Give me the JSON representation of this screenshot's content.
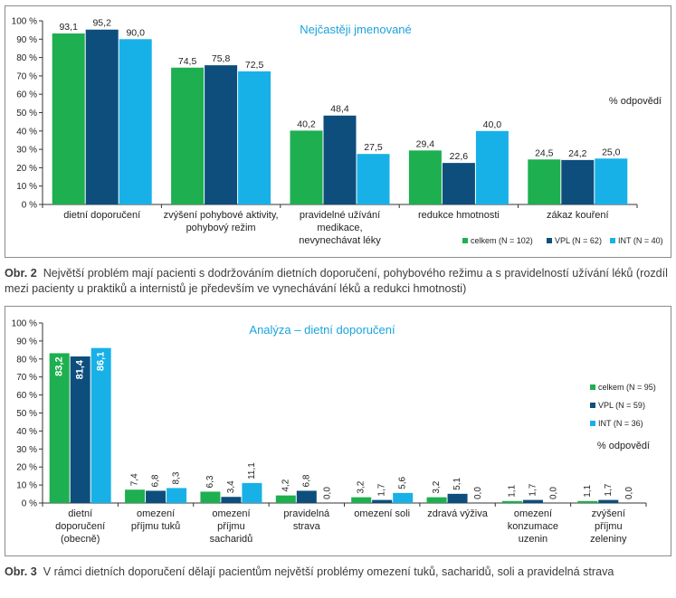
{
  "colors": {
    "celkem": "#1eaf50",
    "VPL": "#0d4e7c",
    "INT": "#17b1e8",
    "title": "#1aa3dd",
    "axis": "#333333"
  },
  "chart_data": [
    {
      "type": "bar",
      "title": "Nejčastěji jmenované",
      "unit_label": "% odpovědí",
      "categories": [
        [
          "dietní doporučení"
        ],
        [
          "zvýšení pohybové aktivity,",
          "pohybový režim"
        ],
        [
          "pravidelné užívání",
          "medikace,",
          "nevynechávat léky"
        ],
        [
          "redukce hmotnosti"
        ],
        [
          "zákaz kouření"
        ]
      ],
      "series": [
        {
          "name": "celkem (N = 102)",
          "values": [
            93.1,
            74.5,
            40.2,
            29.4,
            24.5
          ],
          "labels": [
            "93,1",
            "74,5",
            "40,2",
            "29,4",
            "24,5"
          ]
        },
        {
          "name": "VPL (N = 62)",
          "values": [
            95.2,
            75.8,
            48.4,
            22.6,
            24.2
          ],
          "labels": [
            "95,2",
            "75,8",
            "48,4",
            "22,6",
            "24,2"
          ]
        },
        {
          "name": "INT (N = 40)",
          "values": [
            90.0,
            72.5,
            27.5,
            40.0,
            25.0
          ],
          "labels": [
            "90,0",
            "72,5",
            "27,5",
            "40,0",
            "25,0"
          ]
        }
      ],
      "yticks": [
        "0 %",
        "10 %",
        "20 %",
        "30 %",
        "40 %",
        "50 %",
        "60 %",
        "70 %",
        "80 %",
        "90 %",
        "100 %"
      ],
      "ylim": [
        0,
        100
      ],
      "legend_placement": "bottom-right",
      "value_labels": "horizontal above bars"
    },
    {
      "type": "bar",
      "title": "Analýza – dietní doporučení",
      "unit_label": "% odpovědí",
      "categories": [
        [
          "dietní",
          "doporučení",
          "(obecně)"
        ],
        [
          "omezení",
          "příjmu tuků"
        ],
        [
          "omezení",
          "příjmu",
          "sacharidů"
        ],
        [
          "pravidelná",
          "strava"
        ],
        [
          "omezení soli"
        ],
        [
          "zdravá výživa"
        ],
        [
          "omezení",
          "konzumace",
          "uzenin"
        ],
        [
          "zvýšení",
          "příjmu",
          "zeleniny"
        ]
      ],
      "series": [
        {
          "name": "celkem (N = 95)",
          "values": [
            83.2,
            7.4,
            6.3,
            4.2,
            3.2,
            3.2,
            1.1,
            1.1
          ],
          "labels": [
            "83,2",
            "7,4",
            "6,3",
            "4,2",
            "3,2",
            "3,2",
            "1,1",
            "1,1"
          ]
        },
        {
          "name": "VPL (N = 59)",
          "values": [
            81.4,
            6.8,
            3.4,
            6.8,
            1.7,
            5.1,
            1.7,
            1.7
          ],
          "labels": [
            "81,4",
            "6,8",
            "3,4",
            "6,8",
            "1,7",
            "5,1",
            "1,7",
            "1,7"
          ]
        },
        {
          "name": "INT (N = 36)",
          "values": [
            86.1,
            8.3,
            11.1,
            0.0,
            5.6,
            0.0,
            0.0,
            0.0
          ],
          "labels": [
            "86,1",
            "8,3",
            "11,1",
            "0,0",
            "5,6",
            "0,0",
            "0,0",
            "0,0"
          ]
        }
      ],
      "yticks": [
        "0 %",
        "10 %",
        "20 %",
        "30 %",
        "40 %",
        "50 %",
        "60 %",
        "70 %",
        "80 %",
        "90 %",
        "100 %"
      ],
      "ylim": [
        0,
        100
      ],
      "legend_placement": "right",
      "value_labels": "rotated vertical"
    }
  ],
  "captions": [
    {
      "label": "Obr. 2",
      "text": "Největší problém mají pacienti s dodržováním dietních doporučení, pohybového režimu a s pravidelností užívání léků (rozdíl mezi pacienty u praktiků a internistů je především ve vynechávání léků a redukci hmotnosti)"
    },
    {
      "label": "Obr. 3",
      "text": "V rámci dietních doporučení dělají pacientům největší problémy omezení tuků, sacharidů, soli a pravidelná strava"
    }
  ]
}
